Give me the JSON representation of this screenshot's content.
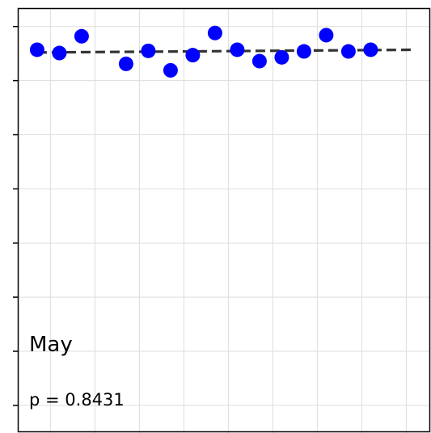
{
  "chart_data": {
    "type": "scatter",
    "annotations": [
      "May",
      "p = 0.8431"
    ],
    "x": [
      1,
      2,
      3,
      5,
      6,
      7,
      8,
      9,
      10,
      11,
      12,
      13,
      14,
      15,
      16
    ],
    "values": [
      6.57,
      6.51,
      6.82,
      6.31,
      6.55,
      6.19,
      6.47,
      6.88,
      6.57,
      6.36,
      6.43,
      6.54,
      6.84,
      6.54,
      6.57
    ],
    "color": "#0000ff",
    "trend": {
      "x": [
        1,
        18
      ],
      "values": [
        6.52,
        6.57
      ],
      "color": "#333333"
    },
    "xlim": [
      0.13,
      18.64
    ],
    "xticks": [
      1.6,
      3.6,
      5.6,
      7.6,
      9.6,
      11.6,
      13.6,
      15.6,
      17.6
    ],
    "ylim": [
      -0.51,
      7.34
    ],
    "yticks": [
      0,
      1,
      2,
      3,
      4,
      5,
      6,
      7
    ],
    "grid": true
  }
}
